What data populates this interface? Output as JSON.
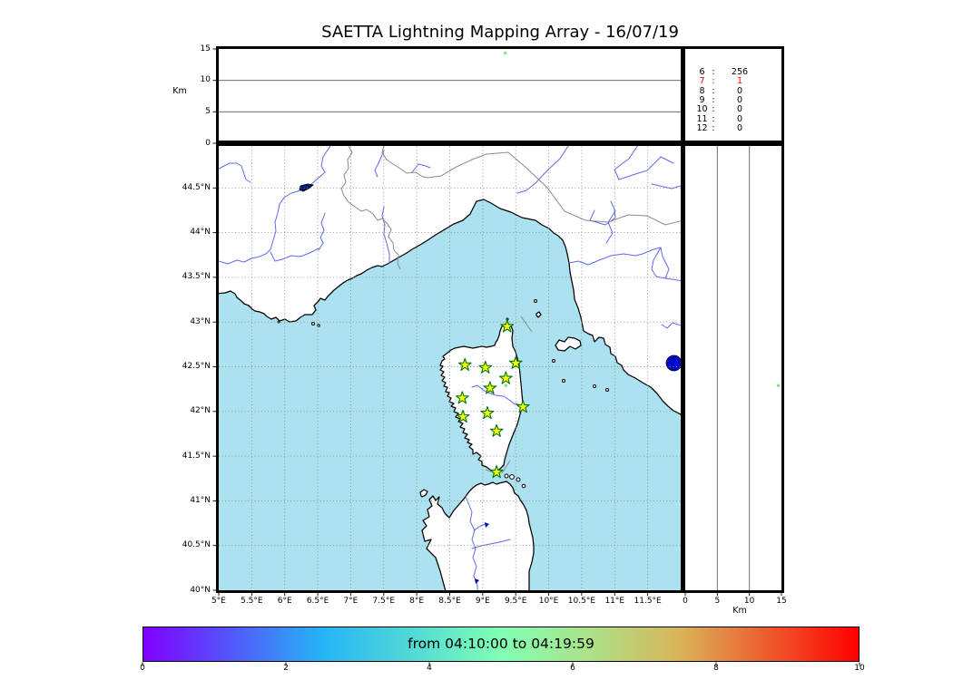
{
  "title": "SAETTA Lightning Mapping Array - 16/07/19",
  "top_panel": {
    "ylabel": "Km",
    "yticks": [
      "15",
      "10",
      "5",
      "0"
    ]
  },
  "right_panel": {
    "xlabel": "Km",
    "xticks": [
      "0",
      "5",
      "10",
      "15"
    ]
  },
  "map_panel": {
    "lat_ticks": [
      "44.5°N",
      "44°N",
      "43.5°N",
      "43°N",
      "42.5°N",
      "42°N",
      "41.5°N",
      "41°N",
      "40.5°N",
      "40°N"
    ],
    "lon_ticks": [
      "5°E",
      "5.5°E",
      "6°E",
      "6.5°E",
      "7°E",
      "7.5°E",
      "8°E",
      "8.5°E",
      "9°E",
      "9.5°E",
      "10°E",
      "10.5°E",
      "11°E",
      "11.5°E"
    ]
  },
  "colorbar": {
    "label": "from 04:10:00 to 04:19:59",
    "ticks": [
      "0",
      "2",
      "4",
      "6",
      "8",
      "10"
    ]
  },
  "colors": {
    "water": "#ace1f0",
    "land": "#ffffff",
    "coast": "#000000",
    "river": "#5f6ae8",
    "border": "#8a8a8a",
    "grid": "#8a8a8a",
    "panel_line": "#6e6e6e",
    "star_fill": "#ffff00",
    "star_edge": "#007700",
    "source": "#7de87d",
    "lake": "#0008c8",
    "highlight": "#ff0000",
    "colorbar_stops": [
      "#8000ff",
      "#5259fa",
      "#25b4f6",
      "#52d9d6",
      "#80ffb4",
      "#ade187",
      "#dab459",
      "#ed5a2d",
      "#ff0000"
    ]
  },
  "chart_data": {
    "type": "scatter",
    "title": "SAETTA Lightning Mapping Array - 16/07/19",
    "map": {
      "lon_range": [
        5,
        12
      ],
      "lat_range": [
        40,
        45
      ],
      "grid_step_deg": 0.5,
      "grid": true
    },
    "altitude_km_range": [
      0,
      15
    ],
    "altitude_ticks_km": [
      0,
      5,
      10,
      15
    ],
    "stations_lonlat": [
      [
        9.37,
        42.95
      ],
      [
        8.73,
        42.52
      ],
      [
        9.04,
        42.49
      ],
      [
        9.5,
        42.54
      ],
      [
        9.35,
        42.37
      ],
      [
        9.11,
        42.26
      ],
      [
        8.69,
        42.15
      ],
      [
        9.61,
        42.05
      ],
      [
        9.07,
        41.98
      ],
      [
        8.7,
        41.94
      ],
      [
        9.21,
        41.78
      ],
      [
        9.21,
        41.32
      ]
    ],
    "lightning_source": {
      "lon": 9.35,
      "lat": 42.29,
      "alt_km": 14.5,
      "time_fraction": 0.62
    },
    "station_count_histogram": {
      "rows": [
        [
          "6",
          "256"
        ],
        [
          "7",
          "1"
        ],
        [
          "8",
          "0"
        ],
        [
          "9",
          "0"
        ],
        [
          "10",
          "0"
        ],
        [
          "11",
          "0"
        ],
        [
          "12",
          "0"
        ]
      ],
      "highlight_row": "7"
    },
    "colorbar": {
      "range": [
        0,
        10
      ],
      "colormap": "rainbow",
      "label": "from 04:10:00 to 04:19:59"
    }
  }
}
